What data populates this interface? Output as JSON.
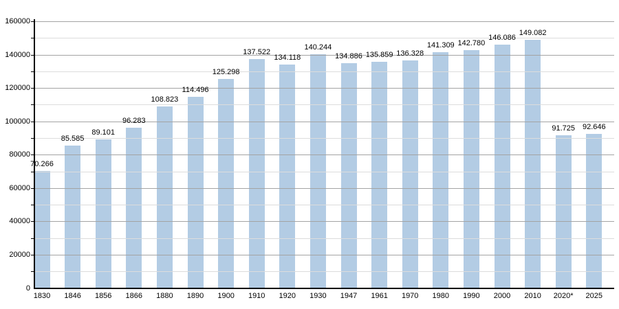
{
  "chart_data": {
    "type": "bar",
    "title": "",
    "xlabel": "",
    "ylabel": "",
    "categories": [
      "1830",
      "1846",
      "1856",
      "1866",
      "1880",
      "1890",
      "1900",
      "1910",
      "1920",
      "1930",
      "1947",
      "1961",
      "1970",
      "1980",
      "1990",
      "2000",
      "2010",
      "2020*",
      "2025"
    ],
    "values": [
      70266,
      85585,
      89101,
      96283,
      108823,
      114496,
      125298,
      137522,
      134118,
      140244,
      134886,
      135859,
      136328,
      141309,
      142780,
      146086,
      149082,
      91725,
      92646
    ],
    "value_labels": [
      "70.266",
      "85.585",
      "89.101",
      "96.283",
      "108.823",
      "114.496",
      "125.298",
      "137.522",
      "134.118",
      "140.244",
      "134.886",
      "135.859",
      "136.328",
      "141.309",
      "142.780",
      "146.086",
      "149.082",
      "91.725",
      "92.646"
    ],
    "ylim": [
      0,
      160000
    ],
    "y_major_step": 20000,
    "y_minor_step": 10000,
    "y_tick_labels": [
      "0",
      "20000",
      "40000",
      "60000",
      "80000",
      "100000",
      "120000",
      "140000",
      "160000"
    ],
    "grid": true,
    "legend_position": "none",
    "bar_color": "#b3cce4",
    "major_grid_color": "#a3a3a3",
    "minor_grid_color": "#dcdcdc",
    "axis_color": "#000000",
    "label_color": "#000000"
  }
}
